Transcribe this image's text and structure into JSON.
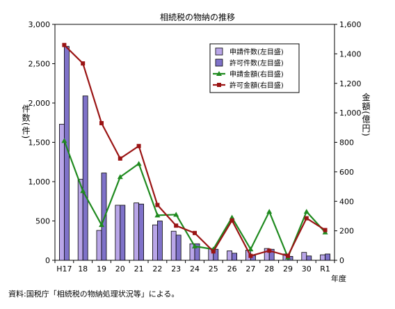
{
  "chart_data": {
    "type": "bar",
    "title": "相続税の物納の推移",
    "categories": [
      "H17",
      "18",
      "19",
      "20",
      "21",
      "22",
      "23",
      "24",
      "25",
      "26",
      "27",
      "28",
      "29",
      "30",
      "R1"
    ],
    "x_axis_unit": "年度",
    "y_left": {
      "label": "件数(件)",
      "range": [
        0,
        3000
      ],
      "ticks": [
        "0",
        "500",
        "1,000",
        "1,500",
        "2,000",
        "2,500",
        "3,000"
      ],
      "tick_values": [
        0,
        500,
        1000,
        1500,
        2000,
        2500,
        3000
      ]
    },
    "y_right": {
      "label": "金額(億円)",
      "range": [
        0,
        1600
      ],
      "ticks": [
        "0",
        "200",
        "400",
        "600",
        "800",
        "1,000",
        "1,200",
        "1,400",
        "1,600"
      ],
      "tick_values": [
        0,
        200,
        400,
        600,
        800,
        1000,
        1200,
        1400,
        1600
      ]
    },
    "series": [
      {
        "name": "申請件数(左目盛)",
        "type": "bar",
        "axis": "left",
        "color": "#b9a6e8",
        "values": [
          1730,
          1030,
          380,
          700,
          730,
          450,
          370,
          210,
          150,
          120,
          130,
          150,
          80,
          100,
          70
        ]
      },
      {
        "name": "許可件数(左目盛)",
        "type": "bar",
        "axis": "left",
        "color": "#7f72c9",
        "values": [
          2720,
          2090,
          1110,
          700,
          715,
          500,
          320,
          210,
          140,
          90,
          60,
          140,
          50,
          55,
          80
        ]
      },
      {
        "name": "申請金額(右目盛)",
        "type": "line",
        "axis": "right",
        "color": "#1f8a1f",
        "values": [
          810,
          470,
          240,
          565,
          655,
          305,
          310,
          95,
          75,
          290,
          75,
          330,
          20,
          330,
          190
        ]
      },
      {
        "name": "許可金額(右目盛)",
        "type": "line",
        "axis": "right",
        "color": "#9a1414",
        "values": [
          1460,
          1335,
          930,
          690,
          775,
          375,
          235,
          185,
          60,
          270,
          30,
          65,
          30,
          285,
          205
        ]
      }
    ],
    "legend_position": "top-right",
    "grid": false
  },
  "footnote": "資料:国税庁「相続税の物納処理状況等」による。"
}
